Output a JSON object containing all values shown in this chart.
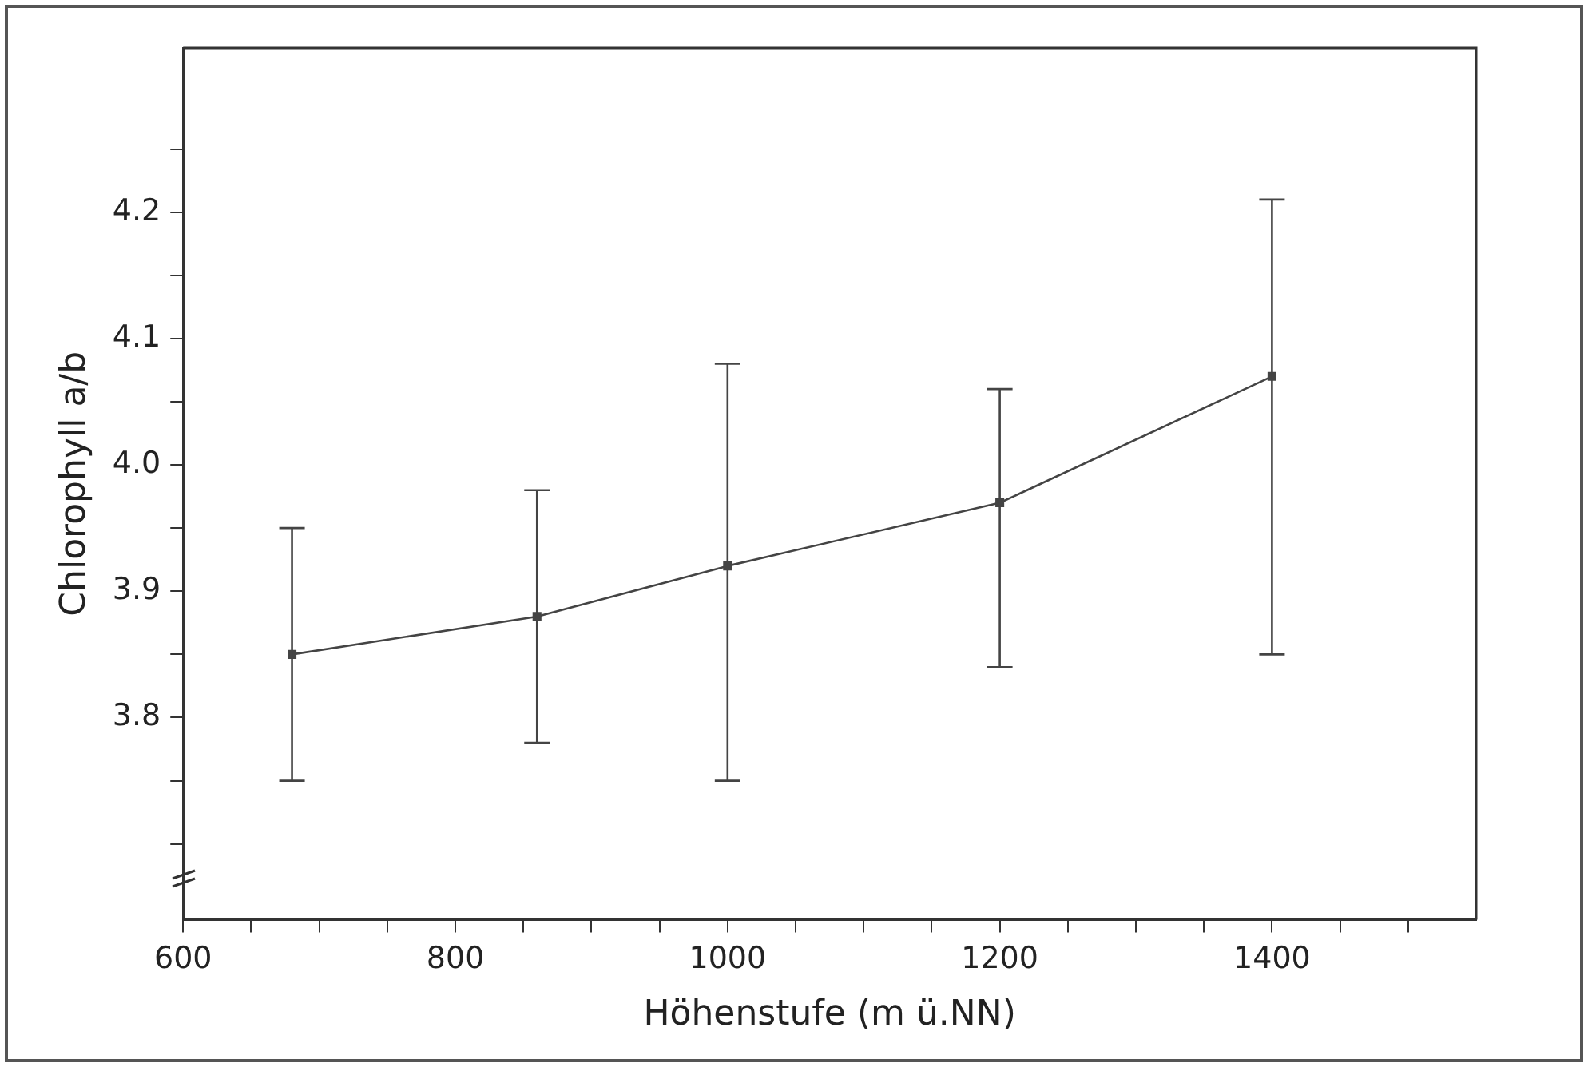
{
  "chart_data": {
    "type": "line",
    "xlabel": "Höhenstufe (m ü.NN)",
    "ylabel": "Chlorophyll a/b",
    "x": [
      680,
      860,
      1000,
      1200,
      1400
    ],
    "series": [
      {
        "color": "#444444",
        "values": [
          3.85,
          3.88,
          3.92,
          3.97,
          4.07
        ],
        "errors": [
          [
            3.75,
            3.95
          ],
          [
            3.78,
            3.98
          ],
          [
            3.75,
            4.08
          ],
          [
            3.84,
            4.06
          ],
          [
            3.85,
            4.21
          ]
        ]
      }
    ],
    "xlim": [
      600,
      1550
    ],
    "xticks": [
      600,
      {
        "value": 650,
        "label": null
      },
      800,
      {
        "value": 700,
        "label": null
      },
      {
        "value": 750,
        "label": null
      },
      {
        "value": 850,
        "label": null
      },
      {
        "value": 900,
        "label": null
      },
      {
        "value": 950,
        "label": null
      },
      1000,
      {
        "value": 1050,
        "label": null
      },
      {
        "value": 1100,
        "label": null
      },
      {
        "value": 1150,
        "label": null
      },
      1200,
      {
        "value": 1250,
        "label": null
      },
      {
        "value": 1300,
        "label": null
      },
      {
        "value": 1350,
        "label": null
      },
      1400,
      {
        "value": 1450,
        "label": null
      },
      {
        "value": 1500,
        "label": null
      }
    ],
    "ylim": [
      3.64,
      4.33
    ],
    "yticks": [
      {
        "value": 3.7,
        "label": null
      },
      {
        "value": 3.75,
        "label": null
      },
      {
        "value": 3.8,
        "label": "3.8"
      },
      {
        "value": 3.85,
        "label": null
      },
      {
        "value": 3.9,
        "label": "3.9"
      },
      {
        "value": 3.95,
        "label": null
      },
      {
        "value": 4.0,
        "label": "4.0"
      },
      {
        "value": 4.05,
        "label": null
      },
      {
        "value": 4.1,
        "label": "4.1"
      },
      {
        "value": 4.15,
        "label": null
      },
      {
        "value": 4.2,
        "label": "4.2"
      },
      {
        "value": 4.25,
        "label": null
      }
    ],
    "grid": false,
    "legend": false,
    "marker": "square",
    "line_style": "solid"
  }
}
